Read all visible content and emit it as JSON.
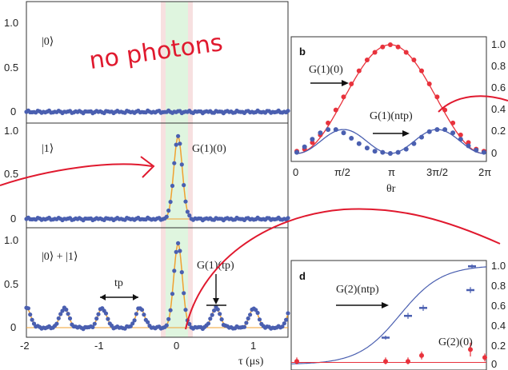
{
  "handwritten_note": "no photons",
  "left_panels": {
    "ytick_labels": [
      "1.0",
      "0.5",
      "0"
    ],
    "xtick_labels": [
      "-2",
      "-1",
      "0",
      "1"
    ],
    "xlabel": "τ (μs)",
    "state_labels": [
      "|0⟩",
      "|1⟩",
      "|0⟩ + |1⟩"
    ],
    "g1_label": "G(1)(0)",
    "tp_label": "tp",
    "g1tp_label": "G(1)(tp)"
  },
  "panel_b": {
    "label": "b",
    "xtick_labels": [
      "0",
      "π/2",
      "π",
      "3π/2",
      "2π"
    ],
    "ytick_labels": [
      "1.0",
      "0.8",
      "0.6",
      "0.4",
      "0.2",
      "0"
    ],
    "xlabel": "θr",
    "series_labels": [
      "G(1)(0)",
      "G(1)(ntp)"
    ]
  },
  "panel_d": {
    "label": "d",
    "ytick_labels": [
      "1.0",
      "0.8",
      "0.6",
      "0.4",
      "0.2",
      "0"
    ],
    "series_labels": [
      "G(2)(ntp)",
      "G(2)(0)"
    ]
  },
  "colors": {
    "blue": "#4a5fb0",
    "red": "#e8323c",
    "orange": "#f0a030",
    "green": "#dff5df",
    "pink": "#f7e0e0"
  },
  "chart_data": [
    {
      "type": "line",
      "panel": "left-top",
      "state": "|0⟩",
      "xlim": [
        -2,
        1.45
      ],
      "ylim": [
        0,
        1
      ],
      "series": [
        {
          "values_constant": 0.0
        }
      ]
    },
    {
      "type": "line",
      "panel": "left-middle",
      "state": "|1⟩",
      "xlim": [
        -2,
        1.45
      ],
      "ylim": [
        0,
        1
      ],
      "peak": {
        "x": 0.0,
        "y": 0.97,
        "width_us": 0.08
      }
    },
    {
      "type": "line",
      "panel": "left-bottom",
      "state": "|0⟩ + |1⟩",
      "xlim": [
        -2,
        1.45
      ],
      "ylim": [
        0,
        1
      ],
      "central_peak": {
        "x": 0.0,
        "y": 0.97
      },
      "side_peaks": {
        "period_us": 0.5,
        "height": 0.23
      }
    },
    {
      "type": "scatter",
      "panel": "b",
      "xlim": [
        0,
        6.283
      ],
      "ylim": [
        0,
        1.05
      ],
      "series": [
        {
          "name": "G(1)(0)",
          "x": [
            0,
            0.26,
            0.52,
            0.79,
            1.05,
            1.31,
            1.57,
            1.83,
            2.09,
            2.36,
            2.62,
            2.88,
            3.14,
            3.4,
            3.67,
            3.93,
            4.19,
            4.45,
            4.71,
            4.97,
            5.24,
            5.5,
            5.76,
            6.02,
            6.28
          ],
          "values": [
            0.02,
            0.04,
            0.1,
            0.17,
            0.28,
            0.4,
            0.52,
            0.64,
            0.76,
            0.86,
            0.93,
            0.98,
            1.0,
            0.98,
            0.93,
            0.86,
            0.76,
            0.64,
            0.52,
            0.4,
            0.28,
            0.17,
            0.1,
            0.04,
            0.02
          ]
        },
        {
          "name": "G(1)(ntp)",
          "x": [
            0,
            0.26,
            0.52,
            0.79,
            1.05,
            1.31,
            1.57,
            1.83,
            2.09,
            2.36,
            2.62,
            2.88,
            3.14,
            3.4,
            3.67,
            3.93,
            4.19,
            4.45,
            4.71,
            4.97,
            5.24,
            5.5,
            5.76,
            6.02,
            6.28
          ],
          "values": [
            0.01,
            0.06,
            0.13,
            0.19,
            0.22,
            0.22,
            0.19,
            0.14,
            0.09,
            0.05,
            0.02,
            0.01,
            0.0,
            0.01,
            0.04,
            0.09,
            0.15,
            0.2,
            0.22,
            0.22,
            0.19,
            0.13,
            0.07,
            0.03,
            0.01
          ]
        }
      ]
    },
    {
      "type": "scatter",
      "panel": "d",
      "ylim": [
        0,
        1.0
      ],
      "series": [
        {
          "name": "G(2)(ntp)",
          "values": [
            0.27,
            0.49,
            0.57,
            0.75,
            0.99
          ],
          "errors": [
            0.02,
            0.03,
            0.03,
            0.03,
            0.02
          ]
        },
        {
          "name": "G(2)(0)",
          "values": [
            0.03,
            0.03,
            0.03,
            0.09,
            0.15,
            0.07
          ],
          "errors": [
            0.04,
            0.04,
            0.04,
            0.04,
            0.07,
            0.04
          ]
        }
      ]
    }
  ]
}
